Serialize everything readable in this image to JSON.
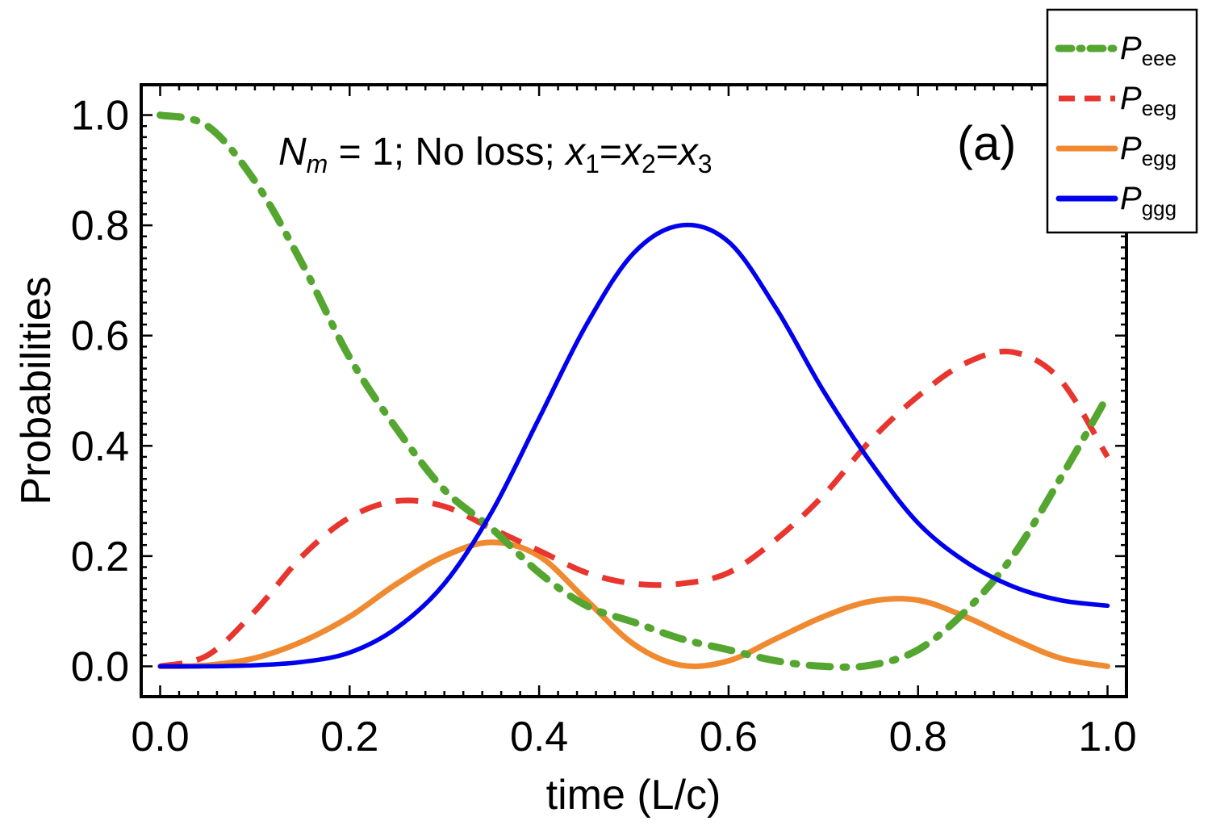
{
  "chart_data": {
    "type": "line",
    "title": "N_m = 1; No loss; x1=x2=x3",
    "title_parts": {
      "n": "N",
      "n_sub": "m",
      "eq_text": " = 1; No loss; ",
      "x": "x",
      "s1": "1",
      "s2": "2",
      "s3": "3",
      "eq": "="
    },
    "panel_label": "(a)",
    "xlabel": "time (L/c)",
    "ylabel": "Probabilities",
    "xlim": [
      -0.02,
      1.02
    ],
    "ylim": [
      -0.055,
      1.055
    ],
    "xticks": [
      0.0,
      0.2,
      0.4,
      0.6,
      0.8,
      1.0
    ],
    "yticks": [
      0.0,
      0.2,
      0.4,
      0.6,
      0.8,
      1.0
    ],
    "tick_labels_x": [
      "0.0",
      "0.2",
      "0.4",
      "0.6",
      "0.8",
      "1.0"
    ],
    "tick_labels_y": [
      "0.0",
      "0.2",
      "0.4",
      "0.6",
      "0.8",
      "1.0"
    ],
    "legend_position": "top-right, outside plot",
    "x": [
      0.0,
      0.05,
      0.1,
      0.15,
      0.2,
      0.25,
      0.3,
      0.35,
      0.4,
      0.45,
      0.5,
      0.55,
      0.6,
      0.65,
      0.7,
      0.75,
      0.8,
      0.85,
      0.9,
      0.95,
      1.0
    ],
    "series": [
      {
        "name": "P_eee",
        "label": "P",
        "sub": "eee",
        "color": "#55a630",
        "style": "dash-dot",
        "values": [
          1.0,
          0.98,
          0.88,
          0.73,
          0.56,
          0.43,
          0.32,
          0.25,
          0.17,
          0.11,
          0.08,
          0.05,
          0.03,
          0.01,
          0.0,
          0.002,
          0.03,
          0.1,
          0.2,
          0.34,
          0.49
        ]
      },
      {
        "name": "P_eeg",
        "label": "P",
        "sub": "eeg",
        "color": "#e8352e",
        "style": "dashed",
        "values": [
          0.0,
          0.02,
          0.1,
          0.2,
          0.27,
          0.3,
          0.29,
          0.25,
          0.21,
          0.17,
          0.15,
          0.15,
          0.17,
          0.23,
          0.31,
          0.41,
          0.49,
          0.55,
          0.57,
          0.52,
          0.38
        ]
      },
      {
        "name": "P_egg",
        "label": "P",
        "sub": "egg",
        "color": "#f08a30",
        "style": "solid",
        "values": [
          0.0,
          0.002,
          0.015,
          0.045,
          0.09,
          0.15,
          0.2,
          0.225,
          0.2,
          0.12,
          0.04,
          0.002,
          0.01,
          0.05,
          0.09,
          0.118,
          0.12,
          0.09,
          0.05,
          0.015,
          0.0
        ]
      },
      {
        "name": "P_ggg",
        "label": "P",
        "sub": "ggg",
        "color": "#0000ee",
        "style": "solid",
        "values": [
          0.0,
          0.0,
          0.002,
          0.008,
          0.025,
          0.07,
          0.15,
          0.28,
          0.45,
          0.62,
          0.75,
          0.8,
          0.77,
          0.65,
          0.5,
          0.37,
          0.26,
          0.19,
          0.145,
          0.12,
          0.11
        ]
      }
    ]
  }
}
